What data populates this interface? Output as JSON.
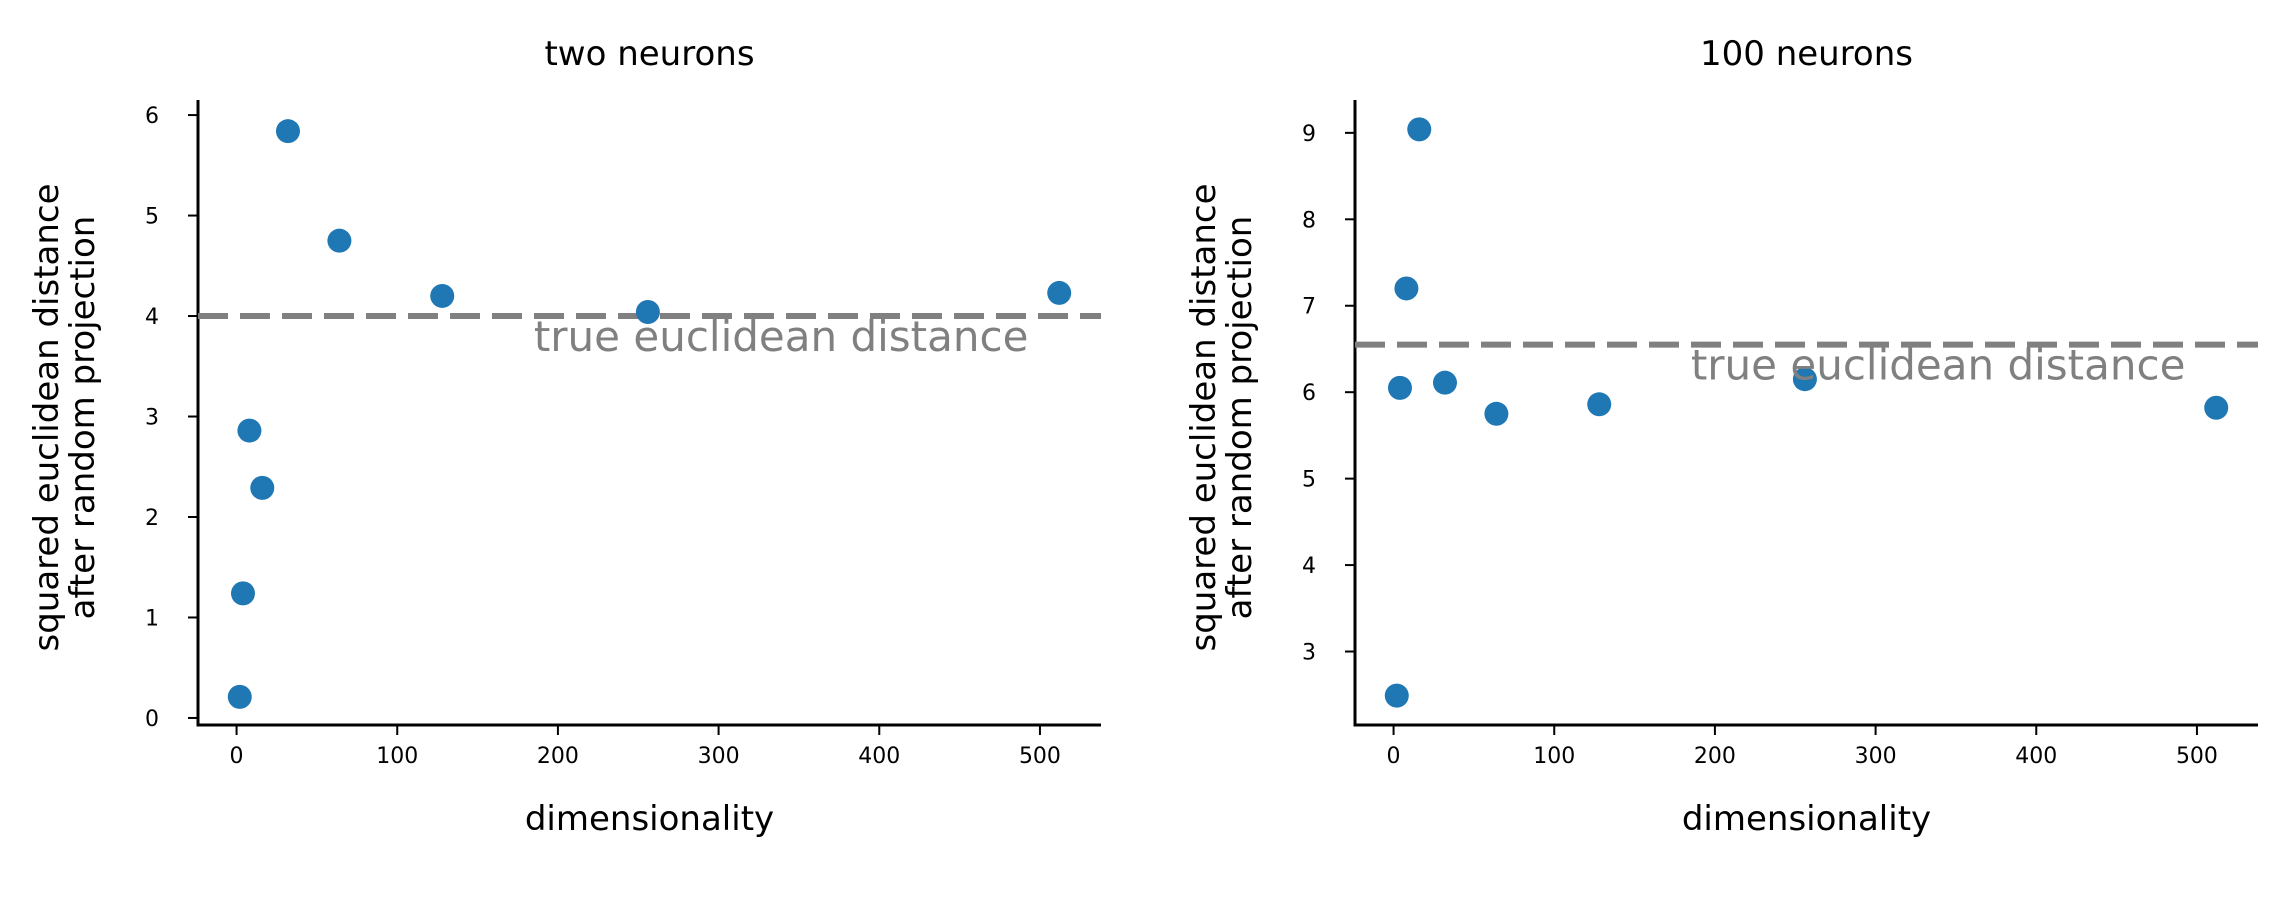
{
  "chart_data": [
    {
      "type": "scatter",
      "title": "two neurons",
      "xlabel": "dimensionality",
      "ylabel": [
        "squared euclidean distance",
        "after random projection"
      ],
      "xlim": [
        -24,
        538
      ],
      "ylim": [
        -0.07,
        6.15
      ],
      "xticks": [
        0,
        100,
        200,
        300,
        400,
        500
      ],
      "yticks": [
        0,
        1,
        2,
        3,
        4,
        5,
        6
      ],
      "series": [
        {
          "x": [
            2,
            4,
            8,
            16,
            32,
            64,
            128,
            256,
            512
          ],
          "y": [
            0.21,
            1.24,
            2.86,
            2.29,
            5.84,
            4.75,
            4.2,
            4.04,
            4.23
          ],
          "color": "#1f77b4"
        }
      ],
      "reference_line": {
        "y": 4.0,
        "label": "true euclidean distance",
        "color": "#808080",
        "style": "dashed"
      },
      "grid": false
    },
    {
      "type": "scatter",
      "title": "100 neurons",
      "xlabel": "dimensionality",
      "ylabel": [
        "squared euclidean distance",
        "after random projection"
      ],
      "xlim": [
        -24,
        538
      ],
      "ylim": [
        2.15,
        9.38
      ],
      "xticks": [
        0,
        100,
        200,
        300,
        400,
        500
      ],
      "yticks": [
        3,
        4,
        5,
        6,
        7,
        8,
        9
      ],
      "series": [
        {
          "x": [
            2,
            4,
            8,
            16,
            32,
            64,
            128,
            256,
            512
          ],
          "y": [
            2.49,
            6.05,
            7.2,
            9.04,
            6.11,
            5.75,
            5.86,
            6.15,
            5.82
          ],
          "color": "#1f77b4"
        }
      ],
      "reference_line": {
        "y": 6.55,
        "label": "true euclidean distance",
        "color": "#808080",
        "style": "dashed"
      },
      "grid": false
    }
  ]
}
